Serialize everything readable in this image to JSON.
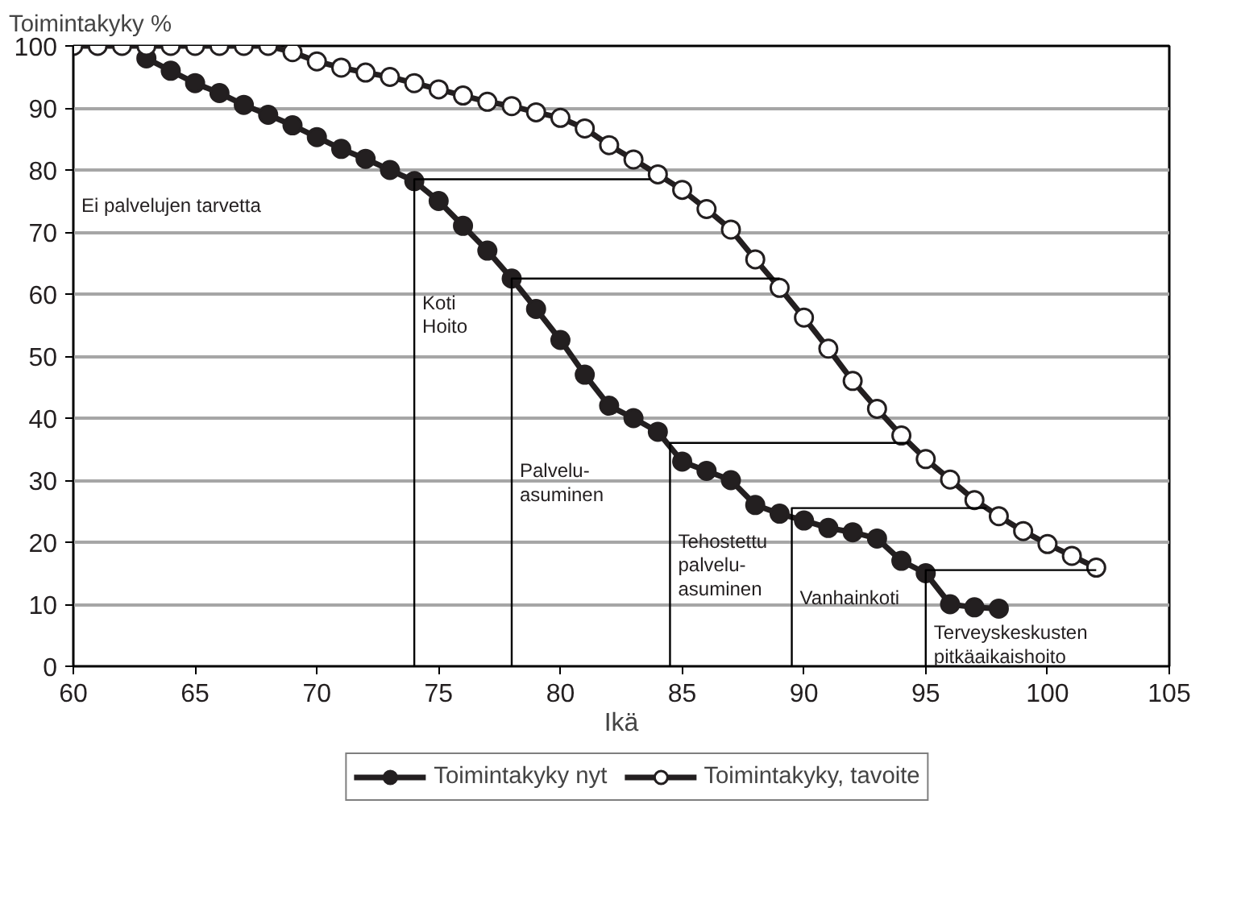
{
  "chart_data": {
    "type": "line",
    "ylabel": "Toimintakyky %",
    "xlabel": "Ikä",
    "xlim": [
      60,
      105
    ],
    "xticks": [
      60,
      65,
      70,
      75,
      80,
      85,
      90,
      95,
      100,
      105
    ],
    "ylim": [
      0,
      100
    ],
    "yticks": [
      0,
      10,
      20,
      30,
      40,
      50,
      60,
      70,
      80,
      90,
      100
    ],
    "grid": "y",
    "legend": "bottom",
    "line_style": "solid",
    "series": [
      {
        "name": "Toimintakyky nyt",
        "color": "#231f20",
        "marker": "circle",
        "x": [
          63,
          64,
          65,
          66,
          67,
          68,
          69,
          70,
          71,
          72,
          73,
          74,
          75,
          76,
          77,
          78,
          79,
          80,
          81,
          82,
          83,
          84,
          85,
          86,
          87,
          88,
          89,
          90,
          91,
          92,
          93,
          94,
          95,
          96,
          97,
          98
        ],
        "values": [
          98,
          96,
          94,
          92.4,
          90.5,
          88.9,
          87.2,
          85.3,
          83.4,
          81.8,
          80,
          78.2,
          75,
          71,
          67,
          62.5,
          57.6,
          52.6,
          47,
          42,
          40,
          37.8,
          33,
          31.5,
          30,
          26,
          24.6,
          23.5,
          22.3,
          21.6,
          20.6,
          17,
          15,
          10,
          9.5,
          9.3
        ]
      },
      {
        "name": "Toimintakyky, tavoite",
        "color": "#231f20",
        "marker": "circle",
        "colors": [
          "#ffffff",
          "#ffffff",
          "#ffffff",
          "#ffffff",
          "#ffffff",
          "#ffffff",
          "#ffffff",
          "#ffffff",
          "#ffffff",
          "#ffffff",
          "#ffffff",
          "#ffffff",
          "#ffffff",
          "#ffffff",
          "#ffffff",
          "#ffffff",
          "#ffffff",
          "#ffffff",
          "#ffffff",
          "#ffffff",
          "#ffffff",
          "#ffffff",
          "#ffffff",
          "#ffffff",
          "#ffffff",
          "#ffffff",
          "#ffffff",
          "#ffffff",
          "#ffffff",
          "#ffffff",
          "#ffffff",
          "#ffffff",
          "#ffffff",
          "#ffffff",
          "#ffffff",
          "#ffffff",
          "#ffffff",
          "#ffffff",
          "#ffffff",
          "#ffffff",
          "#ffffff",
          "#ffffff",
          "#ffffff"
        ],
        "x": [
          60,
          61,
          62,
          63,
          64,
          65,
          66,
          67,
          68,
          69,
          70,
          71,
          72,
          73,
          74,
          75,
          76,
          77,
          78,
          79,
          80,
          81,
          82,
          83,
          84,
          85,
          86,
          87,
          88,
          89,
          90,
          91,
          92,
          93,
          94,
          95,
          96,
          97,
          98,
          99,
          100,
          101,
          102
        ],
        "values": [
          100,
          100,
          100,
          100,
          100,
          100,
          100,
          100,
          100,
          99,
          97.5,
          96.5,
          95.7,
          95,
          94,
          93,
          92,
          91,
          90.3,
          89.3,
          88.4,
          86.7,
          84,
          81.7,
          79.3,
          76.8,
          73.7,
          70.4,
          65.6,
          61,
          56.2,
          51.2,
          46,
          41.5,
          37.2,
          33.4,
          30.1,
          26.8,
          24.2,
          21.8,
          19.7,
          17.8,
          15.9
        ]
      },
      {
        "type": "line",
        "color": "#000000",
        "marker": "none",
        "x": [
          74,
          74,
          83.7
        ],
        "values": [
          0,
          78.5,
          78.5
        ]
      },
      {
        "type": "line",
        "color": "#000000",
        "marker": "none",
        "x": [
          78,
          78,
          89
        ],
        "values": [
          0,
          62.5,
          62.5
        ]
      },
      {
        "type": "line",
        "color": "#000000",
        "marker": "none",
        "x": [
          84.5,
          84.5,
          94.3
        ],
        "values": [
          0,
          36,
          36
        ]
      },
      {
        "type": "line",
        "color": "#000000",
        "marker": "none",
        "x": [
          89.5,
          89.5,
          97.5
        ],
        "values": [
          0,
          25.5,
          25.5
        ]
      },
      {
        "type": "line",
        "color": "#000000",
        "marker": "none",
        "x": [
          95,
          95,
          102
        ],
        "values": [
          0,
          15.5,
          15.5
        ]
      }
    ],
    "annotations": [
      "Ei palvelujen tarvetta",
      "Koti\nHoito",
      "Palvelu-\nasuminen",
      "Tehostettu\npalvelu-\nasuminen",
      "Vanhainkoti",
      "Terveyskeskusten\npitkäaikaishoito"
    ]
  }
}
